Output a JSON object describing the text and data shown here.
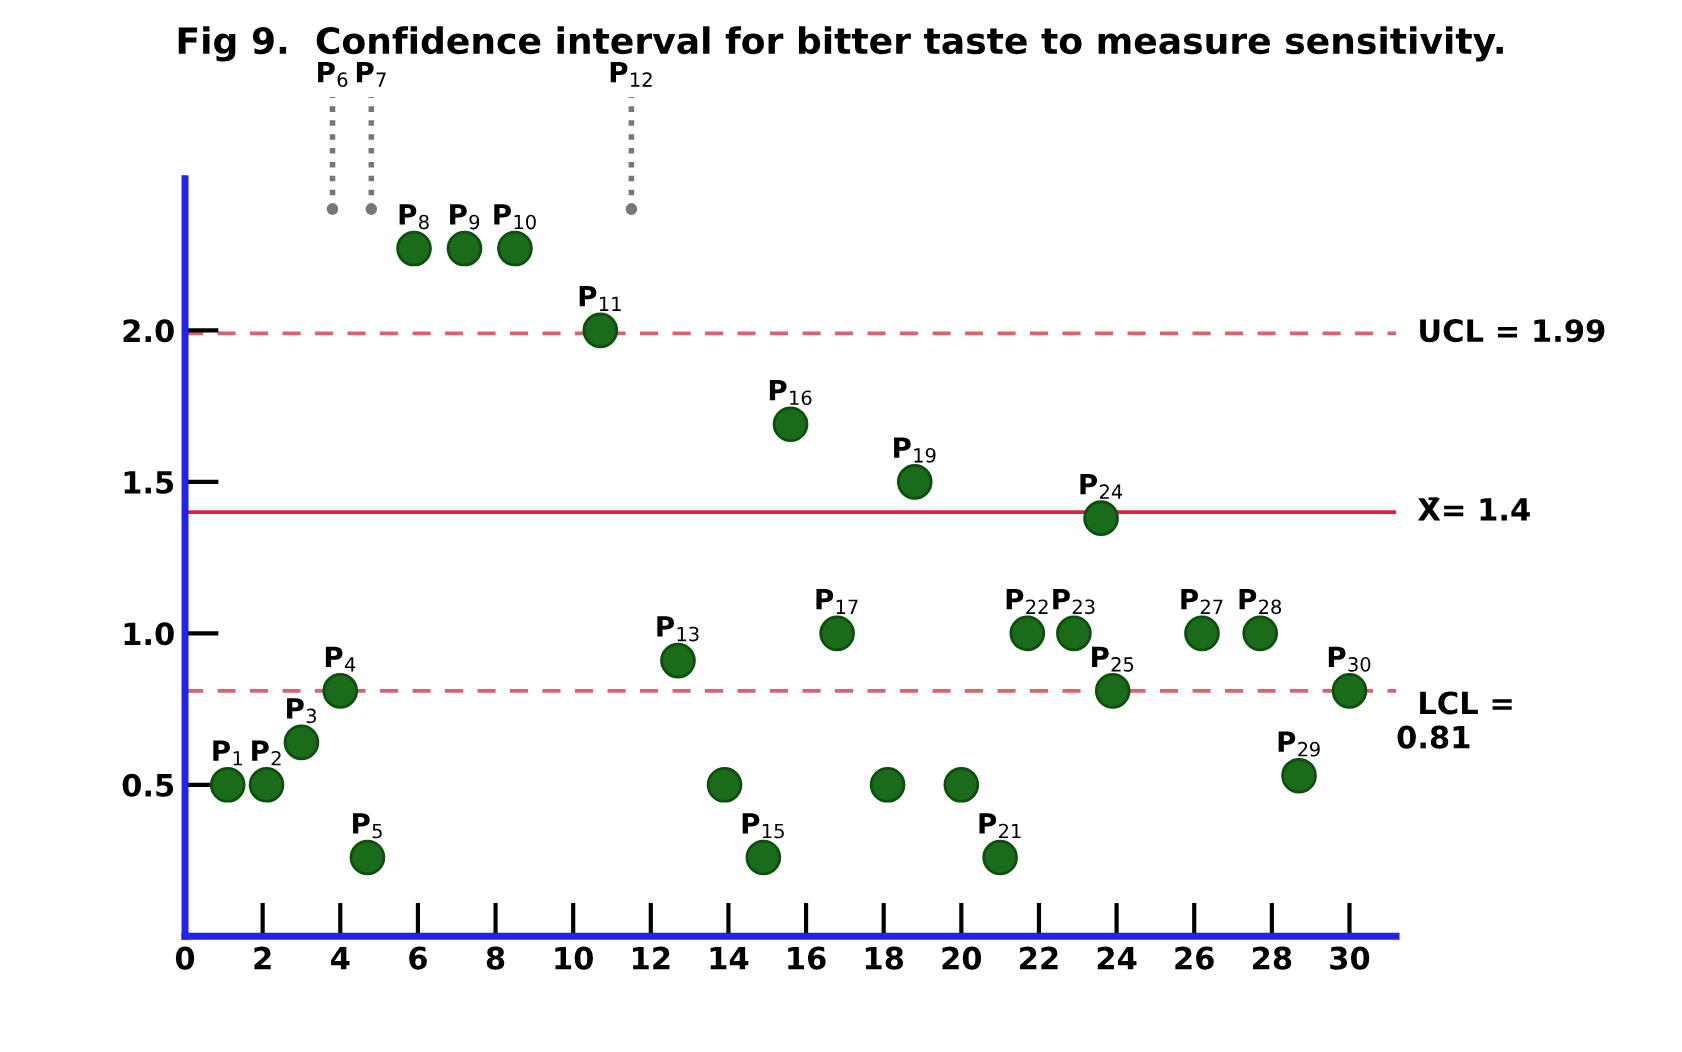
{
  "chart_data": {
    "type": "scatter",
    "title": "Fig 9.  Confidence interval for bitter taste to measure sensitivity.",
    "series": [
      {
        "x": [
          1.1,
          2.1,
          3.0,
          4.0,
          4.7,
          5.9,
          7.2,
          8.5,
          10.7,
          12.7,
          13.9,
          14.9,
          15.6,
          16.8,
          18.1,
          18.8,
          20.0,
          21.0,
          21.7,
          22.9,
          23.6,
          23.9,
          26.2,
          27.7,
          28.7,
          30.0
        ],
        "values": [
          0.5,
          0.5,
          0.64,
          0.81,
          0.26,
          2.27,
          2.27,
          2.27,
          2.0,
          0.91,
          0.5,
          0.26,
          1.69,
          1.0,
          0.5,
          1.5,
          0.5,
          0.26,
          1.0,
          1.0,
          1.38,
          0.81,
          1.0,
          1.0,
          0.53,
          0.81
        ],
        "color": "#1a6b1a"
      },
      {
        "x": [
          3.8,
          4.8,
          11.5
        ],
        "values": [
          2.4,
          2.4,
          2.4
        ],
        "color": "#777777",
        "line_style": "dotted"
      }
    ],
    "marker": "circle",
    "annotations": [
      {
        "text": "P$_{1}$",
        "x": 1.1,
        "y": 0.5
      },
      {
        "text": "P$_{2}$",
        "x": 2.1,
        "y": 0.5
      },
      {
        "text": "P$_{3}$",
        "x": 3.0,
        "y": 0.64
      },
      {
        "text": "P$_{4}$",
        "x": 4.0,
        "y": 0.81
      },
      {
        "text": "P$_{5}$",
        "x": 4.7,
        "y": 0.26
      },
      {
        "text": "P$_{6}$",
        "x": 3.8,
        "y": 2.4
      },
      {
        "text": "P$_{7}$",
        "x": 4.8,
        "y": 2.4
      },
      {
        "text": "P$_{8}$",
        "x": 5.9,
        "y": 2.27
      },
      {
        "text": "P$_{9}$",
        "x": 7.2,
        "y": 2.27
      },
      {
        "text": "P$_{10}$",
        "x": 8.5,
        "y": 2.27
      },
      {
        "text": "P$_{11}$",
        "x": 10.7,
        "y": 2.0
      },
      {
        "text": "P$_{12}$",
        "x": 11.5,
        "y": 2.4
      },
      {
        "text": "P$_{13}$",
        "x": 12.7,
        "y": 0.91
      },
      {
        "text": "P$_{15}$",
        "x": 14.9,
        "y": 0.26
      },
      {
        "text": "P$_{16}$",
        "x": 15.6,
        "y": 1.69
      },
      {
        "text": "P$_{17}$",
        "x": 16.8,
        "y": 1.0
      },
      {
        "text": "P$_{19}$",
        "x": 18.8,
        "y": 1.5
      },
      {
        "text": "P$_{21}$",
        "x": 21.0,
        "y": 0.26
      },
      {
        "text": "P$_{22}$",
        "x": 21.7,
        "y": 1.0
      },
      {
        "text": "P$_{23}$",
        "x": 22.9,
        "y": 1.0
      },
      {
        "text": "P$_{24}$",
        "x": 23.6,
        "y": 1.38
      },
      {
        "text": "P$_{25}$",
        "x": 23.9,
        "y": 0.81
      },
      {
        "text": "P$_{27}$",
        "x": 26.2,
        "y": 1.0
      },
      {
        "text": "P$_{28}$",
        "x": 27.7,
        "y": 1.0
      },
      {
        "text": "P$_{29}$",
        "x": 28.7,
        "y": 0.53
      },
      {
        "text": "P$_{30}$",
        "x": 30.0,
        "y": 0.81
      }
    ],
    "ref_lines": [
      {
        "axis": "y",
        "value": 1.99,
        "label": "UCL = 1.99",
        "color": "#e06070",
        "line_style": "dashed"
      },
      {
        "axis": "y",
        "value": 1.4,
        "label": "X̄= 1.4",
        "color": "#e02040",
        "line_style": "solid"
      },
      {
        "axis": "y",
        "value": 0.81,
        "label": "LCL =\n0.81",
        "color": "#e06070",
        "line_style": "dashed"
      }
    ],
    "xlim": [
      0,
      31.2
    ],
    "ylim": [
      0,
      2.5
    ],
    "xticks": [
      0,
      2,
      4,
      6,
      8,
      10,
      12,
      14,
      16,
      18,
      20,
      22,
      24,
      26,
      28,
      30
    ],
    "yticks": [
      {
        "value": 0.5,
        "label": "0.5"
      },
      {
        "value": 1,
        "label": "1.0"
      },
      {
        "value": 1.5,
        "label": "1.5"
      },
      {
        "value": 2,
        "label": "2.0"
      }
    ],
    "grid": false,
    "legend": false
  }
}
